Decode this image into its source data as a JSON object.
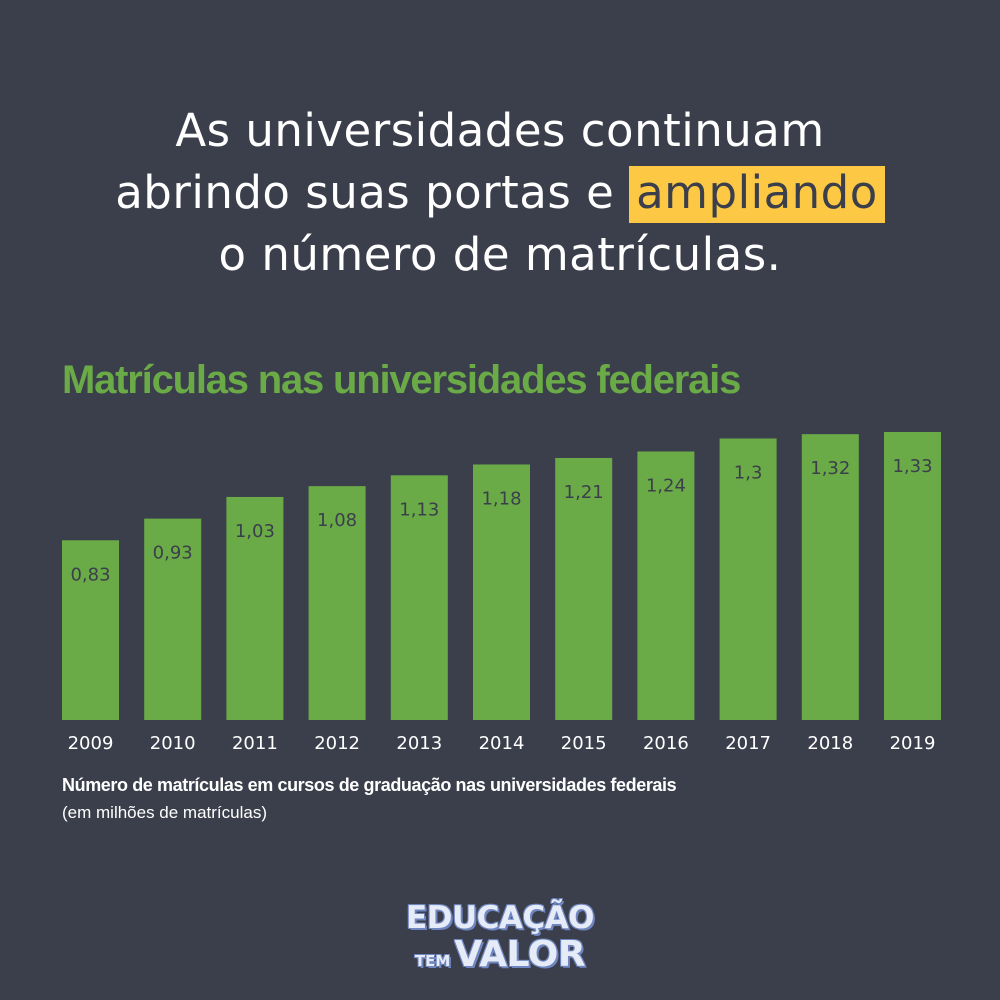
{
  "headline": {
    "line1": "As universidades continuam",
    "line2_pre": "abrindo suas portas e ",
    "line2_highlight": "ampliando",
    "line3": "o número de matrículas."
  },
  "caption": "Número de matrículas em cursos de graduação nas universidades federais",
  "sub_caption": "(em milhões de matrículas)",
  "logo": {
    "top": "EDUCAÇÃO",
    "small": "TEM",
    "big": "VALOR"
  },
  "colors": {
    "background": "#3b3f4b",
    "bar": "#6aab47",
    "highlight": "#fdc844",
    "text": "#ffffff"
  },
  "chart_data": {
    "type": "bar",
    "title": "Matrículas nas universidades federais",
    "categories": [
      "2009",
      "2010",
      "2011",
      "2012",
      "2013",
      "2014",
      "2015",
      "2016",
      "2017",
      "2018",
      "2019"
    ],
    "values": [
      0.83,
      0.93,
      1.03,
      1.08,
      1.13,
      1.18,
      1.21,
      1.24,
      1.3,
      1.32,
      1.33
    ],
    "data_labels": [
      "0,83",
      "0,93",
      "1,03",
      "1,08",
      "1,13",
      "1,18",
      "1,21",
      "1,24",
      "1,3",
      "1,32",
      "1,33"
    ],
    "xlabel": "",
    "ylabel": "",
    "ylim": [
      0,
      1.33
    ],
    "grid": false,
    "legend": "none"
  }
}
